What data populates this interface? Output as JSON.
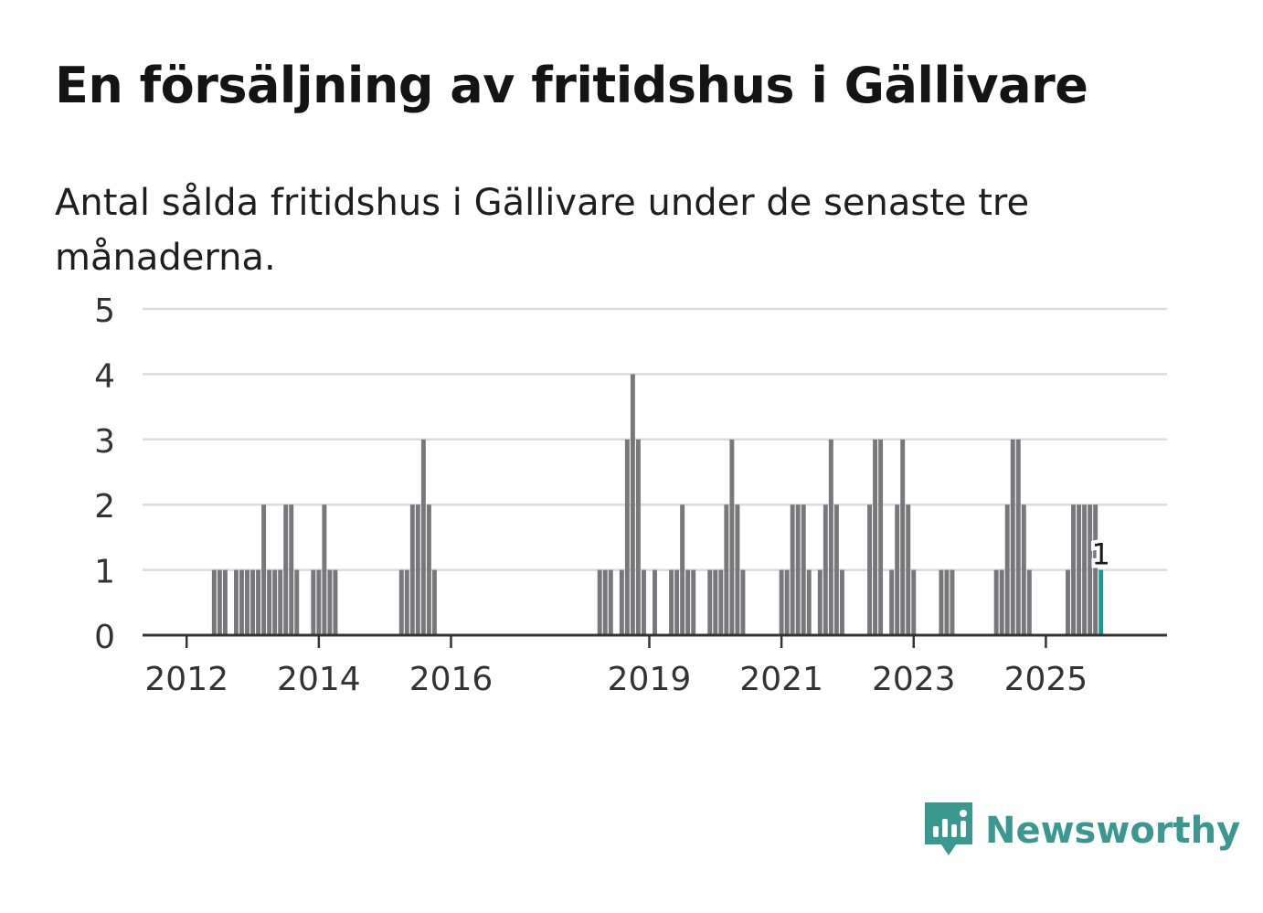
{
  "title": "En försäljning av fritidshus i Gällivare",
  "subtitle": "Antal sålda fritidshus i Gällivare under de senaste tre månaderna.",
  "brand": {
    "name": "Newsworthy",
    "icon": "newsworthy-logo-icon",
    "color": "#3b9891"
  },
  "colors": {
    "bar": "#77777c",
    "highlight": "#1a9990",
    "grid": "#dcdcdc",
    "axis": "#333333"
  },
  "chart_data": {
    "type": "bar",
    "title": "En försäljning av fritidshus i Gällivare",
    "subtitle": "Antal sålda fritidshus i Gällivare under de senaste tre månaderna.",
    "xlabel": "",
    "ylabel": "",
    "ylim": [
      0,
      5
    ],
    "yticks": [
      0,
      1,
      2,
      3,
      4,
      5
    ],
    "xticks": [
      "2012",
      "2014",
      "2016",
      "2019",
      "2021",
      "2023",
      "2025"
    ],
    "x_range": [
      "2011-05",
      "2026-11"
    ],
    "grid": true,
    "legend": "none",
    "highlight_label": "1",
    "series": [
      {
        "points": [
          {
            "x": "2012-06",
            "y": 1
          },
          {
            "x": "2012-07",
            "y": 1
          },
          {
            "x": "2012-08",
            "y": 1
          },
          {
            "x": "2012-10",
            "y": 1
          },
          {
            "x": "2012-11",
            "y": 1
          },
          {
            "x": "2012-12",
            "y": 1
          },
          {
            "x": "2013-01",
            "y": 1
          },
          {
            "x": "2013-02",
            "y": 1
          },
          {
            "x": "2013-03",
            "y": 2
          },
          {
            "x": "2013-04",
            "y": 1
          },
          {
            "x": "2013-05",
            "y": 1
          },
          {
            "x": "2013-06",
            "y": 1
          },
          {
            "x": "2013-07",
            "y": 2
          },
          {
            "x": "2013-08",
            "y": 2
          },
          {
            "x": "2013-09",
            "y": 1
          },
          {
            "x": "2013-12",
            "y": 1
          },
          {
            "x": "2014-01",
            "y": 1
          },
          {
            "x": "2014-02",
            "y": 2
          },
          {
            "x": "2014-03",
            "y": 1
          },
          {
            "x": "2014-04",
            "y": 1
          },
          {
            "x": "2015-04",
            "y": 1
          },
          {
            "x": "2015-05",
            "y": 1
          },
          {
            "x": "2015-06",
            "y": 2
          },
          {
            "x": "2015-07",
            "y": 2
          },
          {
            "x": "2015-08",
            "y": 3
          },
          {
            "x": "2015-09",
            "y": 2
          },
          {
            "x": "2015-10",
            "y": 1
          },
          {
            "x": "2018-04",
            "y": 1
          },
          {
            "x": "2018-05",
            "y": 1
          },
          {
            "x": "2018-06",
            "y": 1
          },
          {
            "x": "2018-08",
            "y": 1
          },
          {
            "x": "2018-09",
            "y": 3
          },
          {
            "x": "2018-10",
            "y": 4
          },
          {
            "x": "2018-11",
            "y": 3
          },
          {
            "x": "2018-12",
            "y": 1
          },
          {
            "x": "2019-02",
            "y": 1
          },
          {
            "x": "2019-05",
            "y": 1
          },
          {
            "x": "2019-06",
            "y": 1
          },
          {
            "x": "2019-07",
            "y": 2
          },
          {
            "x": "2019-08",
            "y": 1
          },
          {
            "x": "2019-09",
            "y": 1
          },
          {
            "x": "2019-12",
            "y": 1
          },
          {
            "x": "2020-01",
            "y": 1
          },
          {
            "x": "2020-02",
            "y": 1
          },
          {
            "x": "2020-03",
            "y": 2
          },
          {
            "x": "2020-04",
            "y": 3
          },
          {
            "x": "2020-05",
            "y": 2
          },
          {
            "x": "2020-06",
            "y": 1
          },
          {
            "x": "2021-01",
            "y": 1
          },
          {
            "x": "2021-02",
            "y": 1
          },
          {
            "x": "2021-03",
            "y": 2
          },
          {
            "x": "2021-04",
            "y": 2
          },
          {
            "x": "2021-05",
            "y": 2
          },
          {
            "x": "2021-06",
            "y": 1
          },
          {
            "x": "2021-08",
            "y": 1
          },
          {
            "x": "2021-09",
            "y": 2
          },
          {
            "x": "2021-10",
            "y": 3
          },
          {
            "x": "2021-11",
            "y": 2
          },
          {
            "x": "2021-12",
            "y": 1
          },
          {
            "x": "2022-05",
            "y": 2
          },
          {
            "x": "2022-06",
            "y": 3
          },
          {
            "x": "2022-07",
            "y": 3
          },
          {
            "x": "2022-09",
            "y": 1
          },
          {
            "x": "2022-10",
            "y": 2
          },
          {
            "x": "2022-11",
            "y": 3
          },
          {
            "x": "2022-12",
            "y": 2
          },
          {
            "x": "2023-01",
            "y": 1
          },
          {
            "x": "2023-06",
            "y": 1
          },
          {
            "x": "2023-07",
            "y": 1
          },
          {
            "x": "2023-08",
            "y": 1
          },
          {
            "x": "2024-04",
            "y": 1
          },
          {
            "x": "2024-05",
            "y": 1
          },
          {
            "x": "2024-06",
            "y": 2
          },
          {
            "x": "2024-07",
            "y": 3
          },
          {
            "x": "2024-08",
            "y": 3
          },
          {
            "x": "2024-09",
            "y": 2
          },
          {
            "x": "2024-10",
            "y": 1
          },
          {
            "x": "2025-05",
            "y": 1
          },
          {
            "x": "2025-06",
            "y": 2
          },
          {
            "x": "2025-07",
            "y": 2
          },
          {
            "x": "2025-08",
            "y": 2
          },
          {
            "x": "2025-09",
            "y": 2
          },
          {
            "x": "2025-10",
            "y": 2
          },
          {
            "x": "2025-11",
            "y": 1,
            "highlight": true
          }
        ]
      }
    ]
  }
}
